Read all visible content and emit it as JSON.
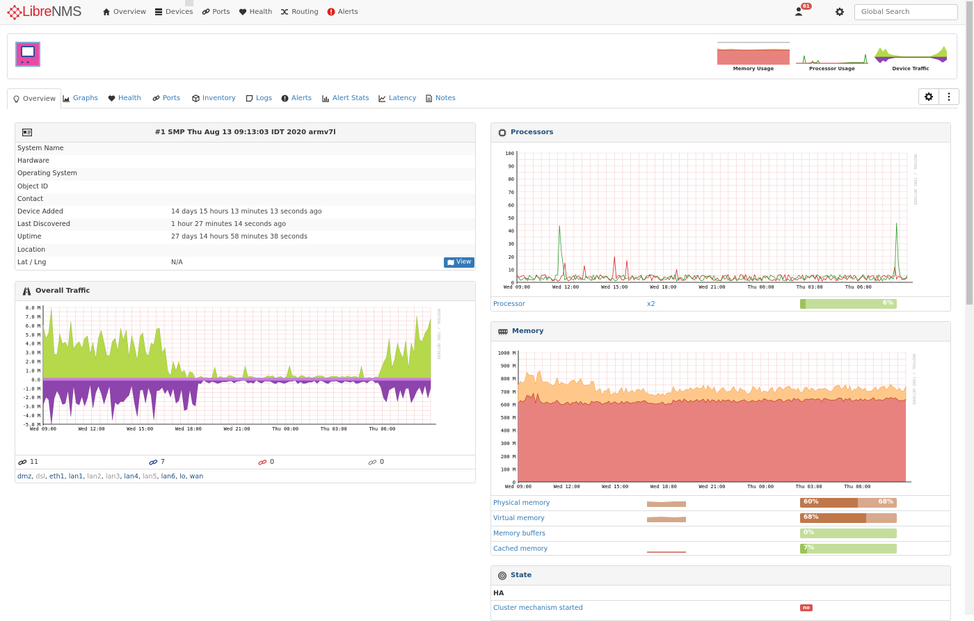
{
  "nav": {
    "brand_libre": "Libre",
    "brand_nms": "NMS",
    "items": [
      {
        "label": "Overview",
        "icon": "home-icon"
      },
      {
        "label": "Devices",
        "icon": "server-icon"
      },
      {
        "label": "Ports",
        "icon": "link-icon"
      },
      {
        "label": "Health",
        "icon": "heartbeat-icon"
      },
      {
        "label": "Routing",
        "icon": "random-icon"
      },
      {
        "label": "Alerts",
        "icon": "exclamation-circle-icon"
      }
    ],
    "user_badge": "61",
    "search_placeholder": "Global Search"
  },
  "header_graphs": [
    {
      "label": "Memory Usage"
    },
    {
      "label": "Processor Usage"
    },
    {
      "label": "Device Traffic"
    }
  ],
  "tabs": [
    {
      "label": "Overview",
      "icon": "lightbulb-icon"
    },
    {
      "label": "Graphs",
      "icon": "area-chart-icon"
    },
    {
      "label": "Health",
      "icon": "heartbeat-icon"
    },
    {
      "label": "Ports",
      "icon": "link-icon"
    },
    {
      "label": "Inventory",
      "icon": "cube-icon"
    },
    {
      "label": "Logs",
      "icon": "sticky-note-icon"
    },
    {
      "label": "Alerts",
      "icon": "exclamation-circle-icon"
    },
    {
      "label": "Alert Stats",
      "icon": "bar-chart-icon"
    },
    {
      "label": "Latency",
      "icon": "line-chart-icon"
    },
    {
      "label": "Notes",
      "icon": "file-text-icon"
    }
  ],
  "device_info": {
    "title": "#1 SMP Thu Aug 13 09:13:03 IDT 2020 armv7l",
    "rows": [
      {
        "key": "System Name",
        "value": ""
      },
      {
        "key": "Hardware",
        "value": ""
      },
      {
        "key": "Operating System",
        "value": ""
      },
      {
        "key": "Object ID",
        "value": ""
      },
      {
        "key": "Contact",
        "value": ""
      },
      {
        "key": "Device Added",
        "value": "14 days 15 hours 13 minutes 13 seconds ago"
      },
      {
        "key": "Last Discovered",
        "value": "1 hour 27 minutes 14 seconds ago"
      },
      {
        "key": "Uptime",
        "value": "27 days 14 hours 58 minutes 38 seconds"
      },
      {
        "key": "Location",
        "value": ""
      },
      {
        "key": "Lat / Lng",
        "value": "N/A"
      }
    ],
    "view_button": "View"
  },
  "traffic": {
    "title": "Overall Traffic",
    "watermark": "RRDTOOL / TOBI OETIKER",
    "y_ticks": [
      "8.0 M",
      "7.0 M",
      "6.0 M",
      "5.0 M",
      "4.0 M",
      "3.0 M",
      "2.0 M",
      "1.0 M",
      "0.0",
      "-1.0 M",
      "-2.0 M",
      "-3.0 M",
      "-4.0 M",
      "-5.0 M"
    ],
    "x_ticks": [
      "Wed 09:00",
      "Wed 12:00",
      "Wed 15:00",
      "Wed 18:00",
      "Wed 21:00",
      "Thu 00:00",
      "Thu 03:00",
      "Thu 06:00"
    ],
    "counts": [
      {
        "value": "11",
        "color": "#333333"
      },
      {
        "value": "7",
        "color": "#2b4f9e"
      },
      {
        "value": "0",
        "color": "#d9534f"
      },
      {
        "value": "0",
        "color": "#999999"
      }
    ],
    "interfaces": [
      {
        "name": "dmz",
        "up": true
      },
      {
        "name": "dsl",
        "up": false
      },
      {
        "name": "eth1",
        "up": true
      },
      {
        "name": "lan1",
        "up": true
      },
      {
        "name": "lan2",
        "up": false
      },
      {
        "name": "lan3",
        "up": false
      },
      {
        "name": "lan4",
        "up": true
      },
      {
        "name": "lan5",
        "up": false
      },
      {
        "name": "lan6",
        "up": true
      },
      {
        "name": "lo",
        "up": true
      },
      {
        "name": "wan",
        "up": true
      }
    ]
  },
  "processors": {
    "title": "Processors",
    "watermark": "RRDTOOL / TOBI OETIKER",
    "y_ticks": [
      "100",
      "90",
      "80",
      "70",
      "60",
      "50",
      "40",
      "30",
      "20",
      "10",
      "0"
    ],
    "x_ticks": [
      "Wed 09:00",
      "Wed 12:00",
      "Wed 15:00",
      "Wed 18:00",
      "Wed 21:00",
      "Thu 00:00",
      "Thu 03:00",
      "Thu 06:00"
    ],
    "row": {
      "name": "Processor",
      "count": "x2",
      "percent": "6%",
      "value": 0.06
    }
  },
  "memory": {
    "title": "Memory",
    "watermark": "RRDTOOL / TOBI OETIKER",
    "y_ticks": [
      "1000 M",
      "900 M",
      "800 M",
      "700 M",
      "600 M",
      "500 M",
      "400 M",
      "300 M",
      "200 M",
      "100 M",
      "0"
    ],
    "x_ticks": [
      "Wed 09:00",
      "Wed 12:00",
      "Wed 15:00",
      "Wed 18:00",
      "Wed 21:00",
      "Thu 00:00",
      "Thu 03:00",
      "Thu 06:00"
    ],
    "rows": [
      {
        "name": "Physical memory",
        "left": "60%",
        "right": "68%",
        "used": 0.6,
        "total": 0.68,
        "spark": "#cd7f4e"
      },
      {
        "name": "Virtual memory",
        "left": "68%",
        "right": "",
        "used": 0.68,
        "total": 0.68,
        "spark": "#cd7f4e"
      },
      {
        "name": "Memory buffers",
        "left": "0%",
        "right": "",
        "used": 0.0,
        "total": 0.0,
        "spark": ""
      },
      {
        "name": "Cached memory",
        "left": "7%",
        "right": "",
        "used": 0.07,
        "total": 0.07,
        "spark": "#c0392b"
      }
    ]
  },
  "state": {
    "title": "State",
    "group": "HA",
    "rows": [
      {
        "name": "Cluster mechanism started",
        "value": "no"
      }
    ]
  },
  "colors": {
    "accent": "#337ab7",
    "danger": "#d9534f",
    "traffic_in": "#b5d94a",
    "traffic_out": "#8e44ad",
    "mem_used": "#e8827f",
    "mem_cache": "#ffc88a",
    "cpu1": "#2e9e2e",
    "cpu2": "#d62728"
  }
}
